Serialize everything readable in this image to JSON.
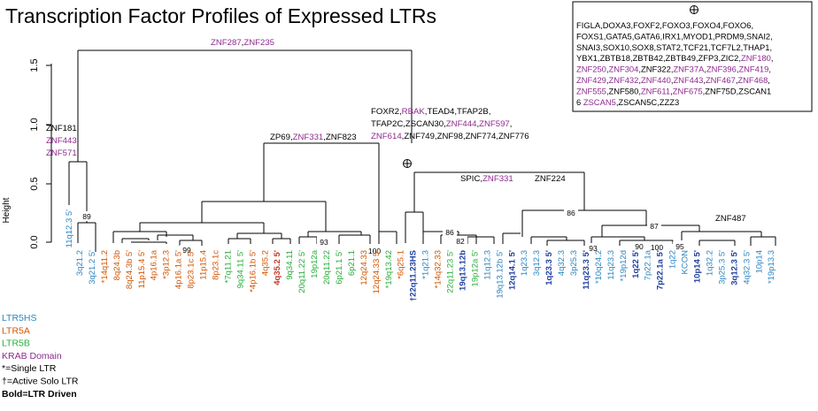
{
  "title": "Transcription Factor Profiles of Expressed LTRs",
  "axis": {
    "ylabel": "Height",
    "ticks": [
      "0.0",
      "0.5",
      "1.0",
      "1.5"
    ]
  },
  "colors": {
    "LTR5HS": "#2e86c1",
    "LTR5A": "#d35400",
    "LTR5B": "#27ae3a",
    "KRAB": "#8e2a8e",
    "black": "#000000",
    "driven_blue": "#1f3fa0"
  },
  "legend": [
    {
      "text": "LTR5HS",
      "color": "LTR5HS"
    },
    {
      "text": "LTR5A",
      "color": "LTR5A"
    },
    {
      "text": "LTR5B",
      "color": "LTR5B"
    },
    {
      "text": "KRAB Domain",
      "color": "KRAB"
    },
    {
      "text": "*=Single LTR",
      "color": "black"
    },
    {
      "text": "†=Active Solo LTR",
      "color": "black"
    },
    {
      "text": "Bold=LTR Driven",
      "color": "black",
      "bold": true
    }
  ],
  "leaves": [
    {
      "text": "3q21.2",
      "color": "LTR5HS"
    },
    {
      "text": "3q21.2 5'",
      "color": "LTR5HS"
    },
    {
      "text": "*14q11.2",
      "color": "LTR5A"
    },
    {
      "text": "8q24.3b",
      "color": "LTR5A"
    },
    {
      "text": "8q24.3b 5'",
      "color": "LTR5A"
    },
    {
      "text": "11p15.4 5'",
      "color": "LTR5A"
    },
    {
      "text": "4p16.1a",
      "color": "LTR5A"
    },
    {
      "text": "*3p12.3",
      "color": "LTR5A"
    },
    {
      "text": "4p16.1a 5'",
      "color": "LTR5A"
    },
    {
      "text": "8p23.1c 5'",
      "color": "LTR5A"
    },
    {
      "text": "11p15.4",
      "color": "LTR5A"
    },
    {
      "text": "8p23.1c",
      "color": "LTR5A"
    },
    {
      "text": "*7q11.21",
      "color": "LTR5B"
    },
    {
      "text": "9q34.11 5'",
      "color": "LTR5B"
    },
    {
      "text": "*4p16.1b 5'",
      "color": "LTR5A"
    },
    {
      "text": "4q35.2",
      "color": "LTR5A"
    },
    {
      "text": "4q35.2 5'",
      "color": "driven_red",
      "bold": true
    },
    {
      "text": "9q34.11",
      "color": "LTR5B"
    },
    {
      "text": "20q11.22 5'",
      "color": "LTR5B"
    },
    {
      "text": "19p12a",
      "color": "LTR5B"
    },
    {
      "text": "20q11.22",
      "color": "LTR5B"
    },
    {
      "text": "6p21.1 5'",
      "color": "LTR5B"
    },
    {
      "text": "6p21.1",
      "color": "LTR5B"
    },
    {
      "text": "12q24.33",
      "color": "LTR5A"
    },
    {
      "text": "12q24.33 5'",
      "color": "LTR5A"
    },
    {
      "text": "*19q13.42",
      "color": "LTR5B"
    },
    {
      "text": "*6q25.1",
      "color": "LTR5A"
    },
    {
      "text": "†22q11.23HS",
      "color": "driven_blue",
      "bold": true
    },
    {
      "text": "*1q21.3",
      "color": "LTR5HS"
    },
    {
      "text": "*14q32.33",
      "color": "LTR5A"
    },
    {
      "text": "22q11.23 5'",
      "color": "LTR5B"
    },
    {
      "text": "19q13.12b",
      "color": "driven_blue",
      "bold": true
    },
    {
      "text": "19p12a 5'",
      "color": "LTR5B"
    },
    {
      "text": "11q12.3",
      "color": "LTR5HS"
    },
    {
      "text": "19q13.12b 5'",
      "color": "LTR5HS"
    },
    {
      "text": "12q14.1 5'",
      "color": "driven_blue",
      "bold": true
    },
    {
      "text": "1q23.3",
      "color": "LTR5HS"
    },
    {
      "text": "3q12.3",
      "color": "LTR5HS"
    },
    {
      "text": "1q23.3 5'",
      "color": "driven_blue",
      "bold": true
    },
    {
      "text": "4q32.3",
      "color": "LTR5HS"
    },
    {
      "text": "3p25.3",
      "color": "LTR5HS"
    },
    {
      "text": "11q23.3 5'",
      "color": "driven_blue",
      "bold": true
    },
    {
      "text": "*10q24.2",
      "color": "LTR5HS"
    },
    {
      "text": "11q23.3",
      "color": "LTR5HS"
    },
    {
      "text": "*19p12d",
      "color": "LTR5HS"
    },
    {
      "text": "1q22 5'",
      "color": "driven_blue",
      "bold": true
    },
    {
      "text": "7p22.1a",
      "color": "LTR5HS"
    },
    {
      "text": "7p22.1a 5'",
      "color": "driven_blue",
      "bold": true
    },
    {
      "text": "1q22",
      "color": "LTR5HS"
    },
    {
      "text": "KCON",
      "color": "LTR5HS"
    },
    {
      "text": "10p14 5'",
      "color": "driven_blue",
      "bold": true
    },
    {
      "text": "1q32.2",
      "color": "LTR5HS"
    },
    {
      "text": "3p25.3 5'",
      "color": "LTR5HS"
    },
    {
      "text": "3q12.3 5'",
      "color": "driven_blue",
      "bold": true
    },
    {
      "text": "4q32.3 5'",
      "color": "LTR5HS"
    },
    {
      "text": "10p14",
      "color": "LTR5HS"
    },
    {
      "text": "*19p13.3",
      "color": "LTR5HS"
    }
  ],
  "standalone_leaf": {
    "text": "11q12.3 5'",
    "color": "LTR5HS"
  },
  "bootstrap": [
    "89",
    "99",
    "93",
    "100",
    "86",
    "82",
    "86",
    "87",
    "93",
    "90",
    "100",
    "95"
  ],
  "annotations": {
    "top": [
      {
        "t": "ZNF287",
        "c": "KRAB"
      },
      {
        "t": ",",
        "c": "black"
      },
      {
        "t": "ZNF235",
        "c": "KRAB"
      }
    ],
    "left": [
      [
        {
          "t": "ZNF181",
          "c": "black"
        }
      ],
      [
        {
          "t": "ZNF443",
          "c": "KRAB"
        }
      ],
      [
        {
          "t": "ZNF571",
          "c": "KRAB"
        }
      ]
    ],
    "mid": [
      {
        "t": "ZP69",
        "c": "black"
      },
      {
        "t": ",",
        "c": "black"
      },
      {
        "t": "ZNF331",
        "c": "KRAB"
      },
      {
        "t": ",ZNF823",
        "c": "black"
      }
    ],
    "right": [
      [
        {
          "t": "FOXR2,",
          "c": "black"
        },
        {
          "t": "RBAK",
          "c": "KRAB"
        },
        {
          "t": ",TEAD4,TFAP2B,",
          "c": "black"
        }
      ],
      [
        {
          "t": "TFAP2C,ZSCAN30,",
          "c": "black"
        },
        {
          "t": "ZNF444",
          "c": "KRAB"
        },
        {
          "t": ",",
          "c": "black"
        },
        {
          "t": "ZNF597",
          "c": "KRAB"
        },
        {
          "t": ",",
          "c": "black"
        }
      ],
      [
        {
          "t": "ZNF614",
          "c": "KRAB"
        },
        {
          "t": ",ZNF749,ZNF98,ZNF774,ZNF776",
          "c": "black"
        }
      ]
    ],
    "spic": [
      {
        "t": "SPIC,",
        "c": "black"
      },
      {
        "t": "ZNF331",
        "c": "KRAB"
      }
    ],
    "znf224": [
      {
        "t": "ZNF224",
        "c": "black"
      }
    ],
    "znf487": [
      {
        "t": "ZNF487",
        "c": "black"
      }
    ]
  },
  "box_lines": [
    [
      {
        "t": "FIGLA,DOXA3,FOXF2,FOXO3,FOXO4,FOXO6,",
        "c": "black"
      }
    ],
    [
      {
        "t": "FOXS1,GATA5,GATA6,IRX1,MYOD1,PRDM9,SNAI2,",
        "c": "black"
      }
    ],
    [
      {
        "t": "SNAI3,SOX10,SOX8,STAT2,TCF21,TCF7L2,THAP1,",
        "c": "black"
      }
    ],
    [
      {
        "t": "YBX1,ZBTB18,ZBTB42,ZBTB49,ZFP3,ZIC2,",
        "c": "black"
      },
      {
        "t": "ZNF180",
        "c": "KRAB"
      },
      {
        "t": ",",
        "c": "black"
      }
    ],
    [
      {
        "t": "ZNF250",
        "c": "KRAB"
      },
      {
        "t": ",",
        "c": "black"
      },
      {
        "t": "ZNF304",
        "c": "KRAB"
      },
      {
        "t": ",ZNF322,",
        "c": "black"
      },
      {
        "t": "ZNF37A",
        "c": "KRAB"
      },
      {
        "t": ",",
        "c": "black"
      },
      {
        "t": "ZNF396",
        "c": "KRAB"
      },
      {
        "t": ",",
        "c": "black"
      },
      {
        "t": "ZNF419",
        "c": "KRAB"
      },
      {
        "t": ",",
        "c": "black"
      }
    ],
    [
      {
        "t": "ZNF429",
        "c": "KRAB"
      },
      {
        "t": ",",
        "c": "black"
      },
      {
        "t": "ZNF432",
        "c": "KRAB"
      },
      {
        "t": ",",
        "c": "black"
      },
      {
        "t": "ZNF440",
        "c": "KRAB"
      },
      {
        "t": ",",
        "c": "black"
      },
      {
        "t": "ZNF443",
        "c": "KRAB"
      },
      {
        "t": ",",
        "c": "black"
      },
      {
        "t": "ZNF467",
        "c": "KRAB"
      },
      {
        "t": ",",
        "c": "black"
      },
      {
        "t": "ZNF468",
        "c": "KRAB"
      },
      {
        "t": ",",
        "c": "black"
      }
    ],
    [
      {
        "t": "ZNF555",
        "c": "KRAB"
      },
      {
        "t": ",ZNF580,",
        "c": "black"
      },
      {
        "t": "ZNF611",
        "c": "KRAB"
      },
      {
        "t": ",",
        "c": "black"
      },
      {
        "t": "ZNF675",
        "c": "KRAB"
      },
      {
        "t": ",ZNF75D,ZSCAN1",
        "c": "black"
      }
    ],
    [
      {
        "t": "6 ",
        "c": "black"
      },
      {
        "t": "ZSCAN5",
        "c": "KRAB"
      },
      {
        "t": ",ZSCAN5C,ZZZ3",
        "c": "black"
      }
    ]
  ]
}
